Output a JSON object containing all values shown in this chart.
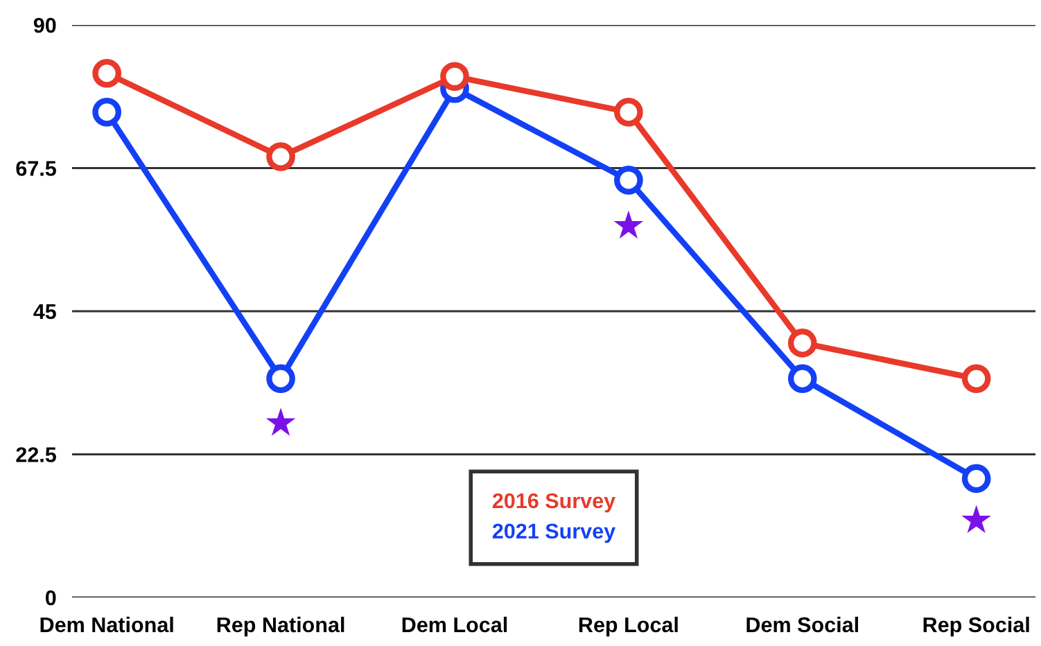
{
  "chart_data": {
    "type": "line",
    "categories": [
      "Dem National",
      "Rep National",
      "Dem Local",
      "Rep Local",
      "Dem Social",
      "Rep Social"
    ],
    "series": [
      {
        "name": "2016 Survey",
        "color": "#e8392a",
        "values": [
          82.4,
          69.3,
          81.9,
          76.3,
          40,
          34.4
        ],
        "marker": "circle"
      },
      {
        "name": "2021 Survey",
        "color": "#1440f5",
        "values": [
          76.3,
          34.4,
          80,
          65.6,
          34.4,
          18.7
        ],
        "marker": "circle"
      },
      {
        "type": "scatter",
        "color": "#7a12e8",
        "values": [
          null,
          27.4,
          null,
          58.4,
          null,
          12.1
        ],
        "marker": "star"
      }
    ],
    "ylim": [
      0,
      90
    ],
    "yticks": [
      0,
      22.5,
      45,
      67.5,
      90
    ],
    "grid": "y",
    "legend": "bottom",
    "line_style": "solid"
  }
}
